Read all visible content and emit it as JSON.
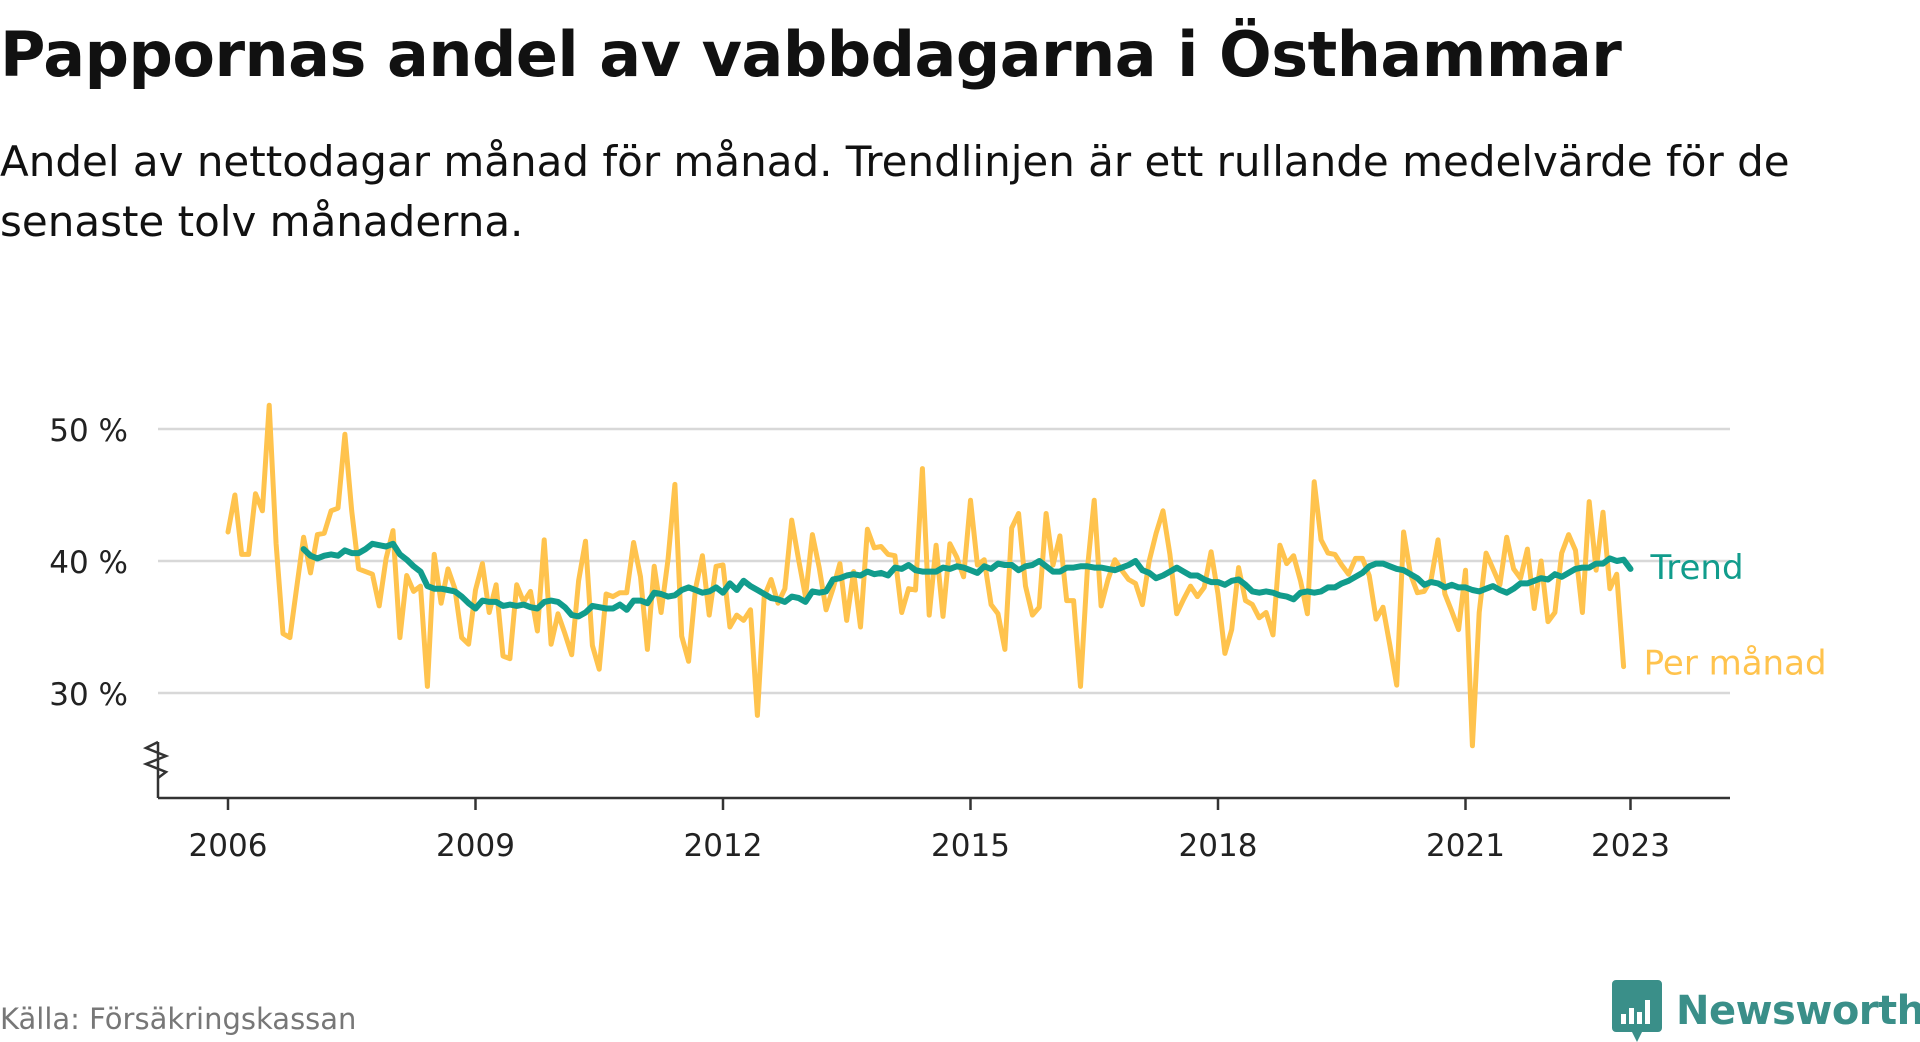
{
  "title": "Pappornas andel av vabbdagarna i Östhammar",
  "subtitle": "Andel av nettodagar månad för månad. Trendlinjen är ett rullande medelvärde för de senaste tolv månaderna.",
  "source": "Källa: Försäkringskassan",
  "logo_text": "Newsworthy",
  "colors": {
    "monthly": "#ffc34d",
    "trend": "#119c8c",
    "grid": "#d8d8d8",
    "axis": "#333333"
  },
  "chart_data": {
    "type": "line",
    "title": "Pappornas andel av vabbdagarna i Östhammar",
    "xlabel": "",
    "ylabel": "",
    "ylim": [
      22,
      50
    ],
    "y_ticks": [
      30,
      40,
      50
    ],
    "y_tick_labels": [
      "30 %",
      "40 %",
      "50 %"
    ],
    "x_ticks": [
      2006,
      2009,
      2012,
      2015,
      2018,
      2021,
      2023
    ],
    "x_tick_labels": [
      "2006",
      "2009",
      "2012",
      "2015",
      "2018",
      "2021",
      "2023"
    ],
    "series": [
      {
        "name": "Per månad",
        "label": "Per månad",
        "color": "#ffc34d",
        "start": 2006.0,
        "step": 0.0833333,
        "values": [
          42.2,
          45.0,
          40.5,
          40.5,
          45.1,
          43.8,
          51.8,
          41.3,
          34.5,
          34.2,
          38.0,
          41.8,
          39.1,
          42.0,
          42.1,
          43.8,
          44.0,
          49.6,
          43.8,
          39.4,
          39.2,
          39.0,
          36.6,
          40.2,
          42.3,
          34.2,
          38.9,
          37.7,
          38.1,
          30.5,
          40.5,
          36.8,
          39.4,
          37.9,
          34.2,
          33.7,
          37.8,
          39.8,
          36.1,
          38.2,
          32.8,
          32.6,
          38.2,
          36.9,
          37.7,
          34.7,
          41.6,
          33.7,
          36.0,
          34.5,
          32.9,
          38.5,
          41.5,
          33.6,
          31.8,
          37.5,
          37.3,
          37.6,
          37.6,
          41.4,
          38.8,
          33.3,
          39.6,
          36.1,
          40.1,
          45.8,
          34.3,
          32.4,
          37.9,
          40.4,
          35.9,
          39.6,
          39.7,
          35.0,
          35.9,
          35.5,
          36.3,
          28.3,
          37.3,
          38.6,
          36.8,
          37.9,
          43.1,
          40.1,
          37.3,
          42.0,
          39.5,
          36.3,
          37.9,
          39.8,
          35.5,
          39.2,
          35.0,
          42.4,
          41.0,
          41.1,
          40.5,
          40.4,
          36.1,
          37.9,
          37.8,
          47.0,
          35.9,
          41.2,
          35.8,
          41.3,
          40.3,
          38.8,
          44.6,
          39.7,
          40.1,
          36.7,
          36.0,
          33.3,
          42.5,
          43.6,
          38.1,
          35.9,
          36.5,
          43.6,
          39.7,
          41.9,
          37.0,
          37.0,
          30.5,
          39.4,
          44.6,
          36.6,
          38.6,
          40.1,
          39.3,
          38.6,
          38.3,
          36.7,
          40.0,
          42.1,
          43.8,
          40.5,
          36.0,
          37.1,
          38.1,
          37.3,
          38.0,
          40.7,
          37.5,
          33.0,
          34.8,
          39.5,
          37.0,
          36.7,
          35.7,
          36.1,
          34.4,
          41.2,
          39.8,
          40.4,
          38.5,
          36.0,
          46.0,
          41.6,
          40.6,
          40.5,
          39.7,
          39.0,
          40.2,
          40.2,
          38.9,
          35.6,
          36.5,
          33.6,
          30.6,
          42.2,
          39.0,
          37.6,
          37.7,
          38.6,
          41.6,
          37.5,
          36.2,
          34.8,
          39.3,
          26.0,
          36.1,
          40.6,
          39.4,
          38.2,
          41.8,
          39.4,
          38.7,
          40.9,
          36.4,
          40.0,
          35.4,
          36.1,
          40.6,
          42.0,
          40.8,
          36.1,
          44.5,
          39.3,
          43.7,
          37.9,
          39.0,
          32.0
        ]
      },
      {
        "name": "Trend",
        "label": "Trend",
        "color": "#119c8c",
        "start": 2006.9167,
        "step": 0.0833333,
        "values": [
          40.9,
          40.4,
          40.2,
          40.4,
          40.5,
          40.4,
          40.8,
          40.6,
          40.6,
          40.9,
          41.3,
          41.2,
          41.1,
          41.3,
          40.5,
          40.1,
          39.6,
          39.2,
          38.1,
          37.9,
          37.9,
          37.8,
          37.7,
          37.3,
          36.8,
          36.4,
          37.0,
          36.9,
          36.9,
          36.6,
          36.7,
          36.6,
          36.7,
          36.5,
          36.4,
          36.9,
          37.0,
          36.9,
          36.5,
          35.9,
          35.8,
          36.1,
          36.6,
          36.5,
          36.4,
          36.4,
          36.7,
          36.3,
          37.0,
          37.0,
          36.8,
          37.6,
          37.5,
          37.3,
          37.4,
          37.8,
          38.0,
          37.8,
          37.6,
          37.7,
          38.0,
          37.6,
          38.3,
          37.8,
          38.5,
          38.1,
          37.8,
          37.5,
          37.2,
          37.1,
          36.9,
          37.3,
          37.2,
          36.9,
          37.7,
          37.6,
          37.7,
          38.6,
          38.7,
          38.9,
          39.0,
          38.9,
          39.2,
          39.0,
          39.1,
          38.9,
          39.5,
          39.4,
          39.7,
          39.3,
          39.2,
          39.2,
          39.2,
          39.5,
          39.4,
          39.6,
          39.5,
          39.3,
          39.1,
          39.6,
          39.4,
          39.8,
          39.7,
          39.7,
          39.3,
          39.6,
          39.7,
          40.0,
          39.6,
          39.2,
          39.2,
          39.5,
          39.5,
          39.6,
          39.6,
          39.5,
          39.5,
          39.4,
          39.3,
          39.5,
          39.7,
          40.0,
          39.3,
          39.1,
          38.7,
          38.9,
          39.2,
          39.5,
          39.2,
          38.9,
          38.9,
          38.6,
          38.4,
          38.4,
          38.2,
          38.5,
          38.6,
          38.2,
          37.7,
          37.6,
          37.7,
          37.6,
          37.4,
          37.3,
          37.1,
          37.6,
          37.7,
          37.6,
          37.7,
          38.0,
          38.0,
          38.3,
          38.5,
          38.8,
          39.1,
          39.6,
          39.8,
          39.8,
          39.6,
          39.4,
          39.3,
          39.0,
          38.7,
          38.2,
          38.4,
          38.3,
          38.0,
          38.2,
          38.0,
          38.0,
          37.8,
          37.7,
          37.9,
          38.1,
          37.8,
          37.6,
          37.9,
          38.3,
          38.3,
          38.5,
          38.7,
          38.6,
          39.0,
          38.8,
          39.1,
          39.4,
          39.5,
          39.5,
          39.8,
          39.8,
          40.2,
          40.0,
          40.1,
          39.4
        ]
      }
    ]
  }
}
